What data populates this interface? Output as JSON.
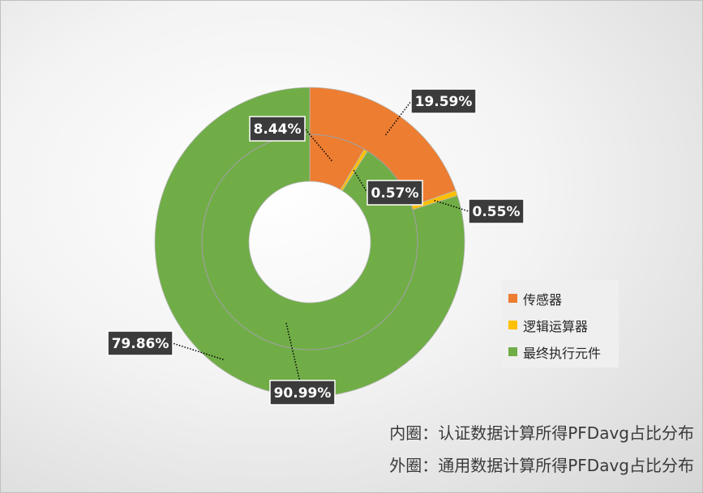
{
  "chart_data": {
    "type": "donut",
    "series": [
      {
        "name": "",
        "ring": "inner",
        "values": [
          8.44,
          0.57,
          90.99
        ],
        "labels": [
          "8.44%",
          "0.57%",
          "90.99%"
        ]
      },
      {
        "name": "",
        "ring": "outer",
        "values": [
          19.59,
          0.55,
          79.86
        ],
        "labels": [
          "19.59%",
          "0.55%",
          "79.86%"
        ]
      }
    ],
    "categories": [
      "传感器",
      "逻辑运算器",
      "最终执行元件"
    ],
    "colors": [
      "#ed7d31",
      "#ffc000",
      "#70ad47"
    ],
    "legend": {
      "position": "right",
      "items": [
        {
          "label": "传感器",
          "color": "#ed7d31"
        },
        {
          "label": "逻辑运算器",
          "color": "#ffc000"
        },
        {
          "label": "最终执行元件",
          "color": "#70ad47"
        }
      ]
    },
    "notes": [
      "内圈：认证数据计算所得PFDavg占比分布",
      "外圈：通用数据计算所得PFDavg占比分布"
    ]
  }
}
